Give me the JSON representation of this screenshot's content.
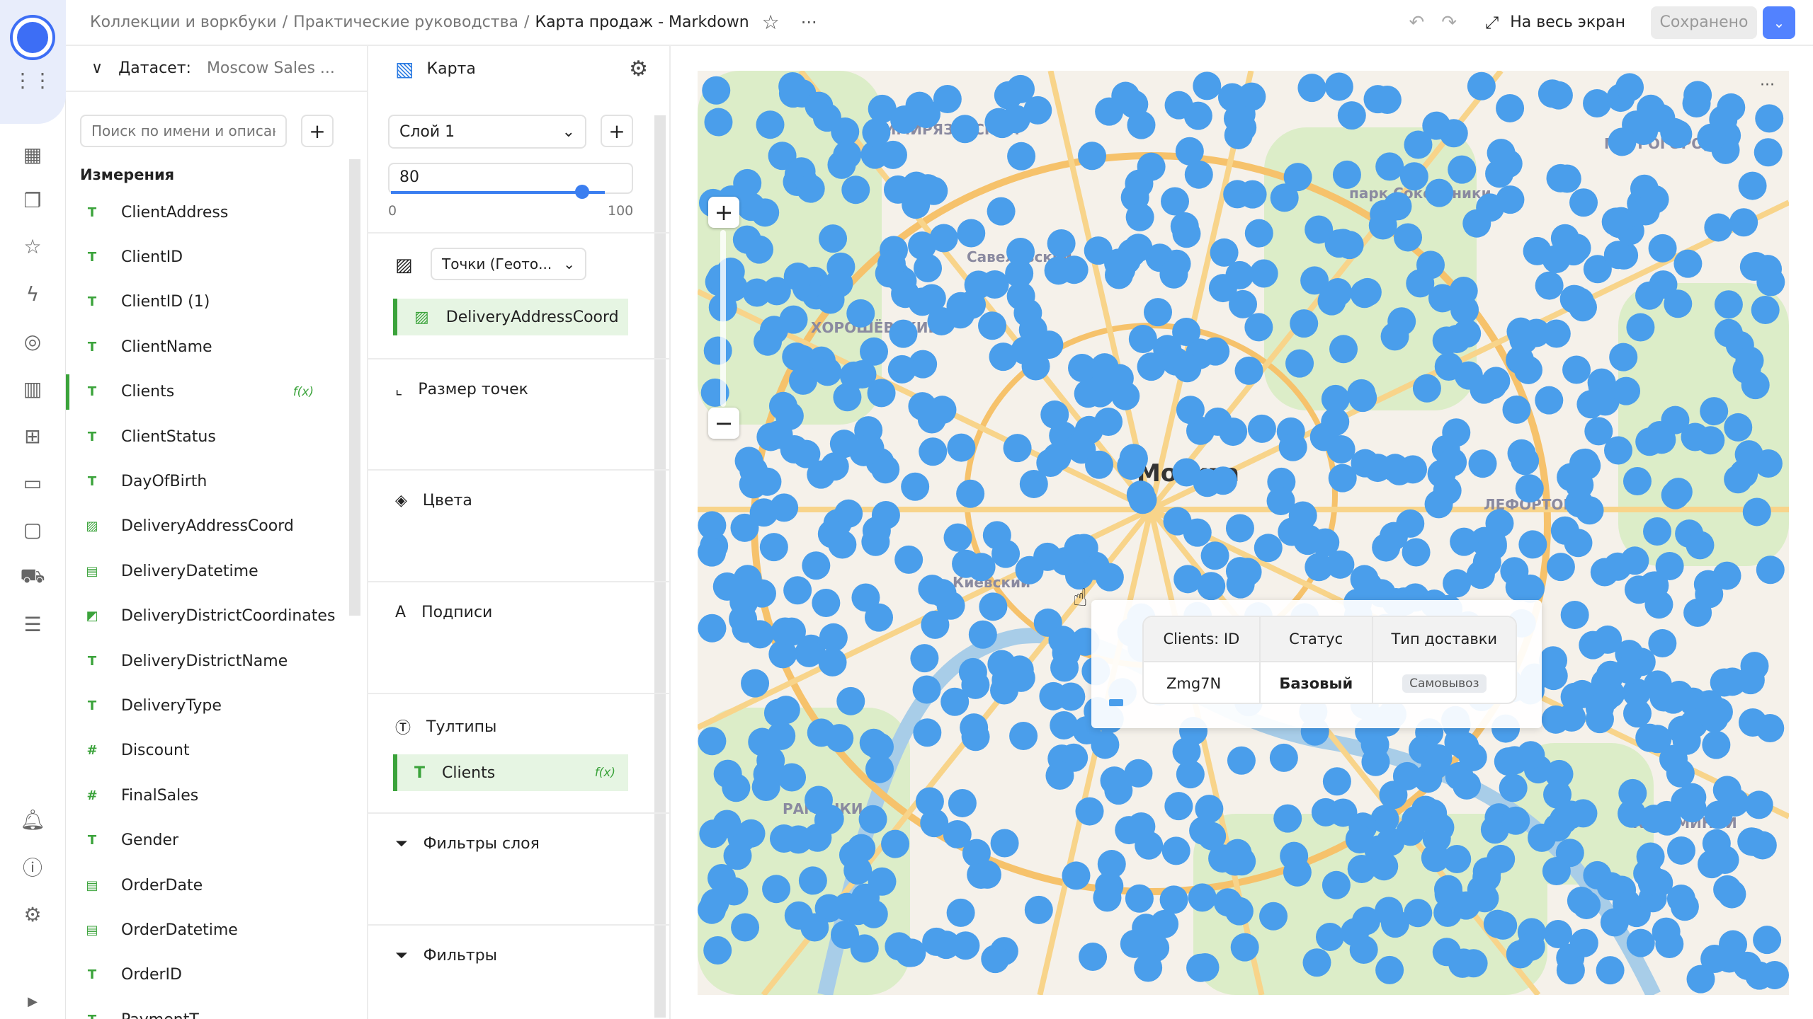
{
  "breadcrumb": [
    "Коллекции и воркбуки",
    "Практические руководства",
    "Карта продаж - Markdown"
  ],
  "topbar": {
    "fullscreen_label": "На весь экран",
    "saved_label": "Сохранено",
    "accent": "#5282ff"
  },
  "dataset": {
    "label": "Датасет:",
    "name": "Moscow Sales ...",
    "search_placeholder": "Поиск по имени и описанию",
    "section_title": "Измерения",
    "fields": [
      {
        "name": "ClientAddress",
        "type": "text"
      },
      {
        "name": "ClientID",
        "type": "text"
      },
      {
        "name": "ClientID (1)",
        "type": "text"
      },
      {
        "name": "ClientName",
        "type": "text"
      },
      {
        "name": "Clients",
        "type": "text",
        "formula": "f(x)",
        "active": true
      },
      {
        "name": "ClientStatus",
        "type": "text"
      },
      {
        "name": "DayOfBirth",
        "type": "text"
      },
      {
        "name": "DeliveryAddressCoord",
        "type": "geo"
      },
      {
        "name": "DeliveryDatetime",
        "type": "date"
      },
      {
        "name": "DeliveryDistrictCoordinates",
        "type": "geopoly"
      },
      {
        "name": "DeliveryDistrictName",
        "type": "text"
      },
      {
        "name": "DeliveryType",
        "type": "text"
      },
      {
        "name": "Discount",
        "type": "number"
      },
      {
        "name": "FinalSales",
        "type": "number"
      },
      {
        "name": "Gender",
        "type": "text"
      },
      {
        "name": "OrderDate",
        "type": "date"
      },
      {
        "name": "OrderDatetime",
        "type": "date"
      },
      {
        "name": "OrderID",
        "type": "text"
      },
      {
        "name": "PaymentT...",
        "type": "text"
      }
    ]
  },
  "config": {
    "chart_type": "Карта",
    "layer": "Слой 1",
    "opacity": {
      "value": "80",
      "min": "0",
      "max": "100",
      "fraction": 0.8
    },
    "viz": "Точки (Геото...",
    "geo_field": "DeliveryAddressCoord",
    "point_size": "Размер точек",
    "colors": "Цвета",
    "labels": "Подписи",
    "tooltips": "Тултипы",
    "tooltip_field": "Clients",
    "tooltip_formula": "f(x)",
    "layer_filters": "Фильтры слоя",
    "filters": "Фильтры"
  },
  "map": {
    "point_color": "#4a9eeb",
    "labels": [
      "Москва",
      "парк Сокольники",
      "Савеловский",
      "ХОРОШЁВСКИЙ",
      "МЕТРОГОРОДОК",
      "Киевский",
      "РАМЕНКИ",
      "КУЗЬМИНКИ",
      "ТИМИРЯЗЕВСКИЙ",
      "ЛЕФОРТОВО"
    ]
  },
  "tooltip": {
    "headers": [
      "Clients: ID",
      "Статус",
      "Тип доставки"
    ],
    "row": [
      "Zmg7N",
      "Базовый",
      "Самовывоз"
    ]
  }
}
